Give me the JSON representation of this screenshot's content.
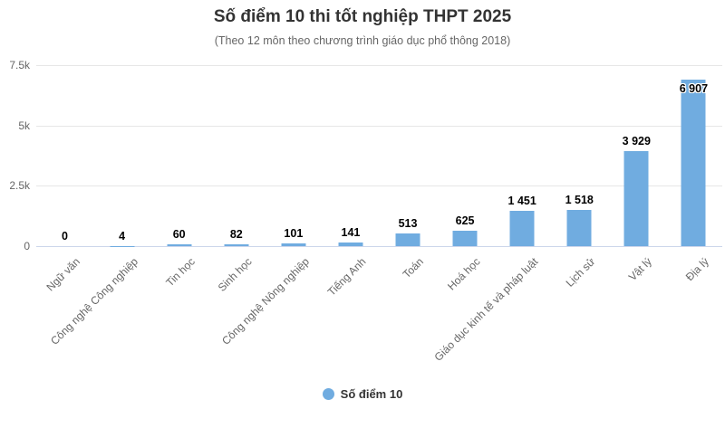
{
  "chart_data": {
    "type": "bar",
    "title": "Số điểm 10 thi tốt nghiệp THPT 2025",
    "subtitle": "(Theo 12 môn theo chương trình giáo dục phổ thông 2018)",
    "categories": [
      "Ngữ văn",
      "Công nghệ Công nghiệp",
      "Tin học",
      "Sinh học",
      "Công nghệ Nông nghiệp",
      "Tiếng Anh",
      "Toán",
      "Hoá học",
      "Giáo dục kinh tế và pháp luật",
      "Lịch sử",
      "Vật lý",
      "Địa lý"
    ],
    "values": [
      0,
      4,
      60,
      82,
      101,
      141,
      513,
      625,
      1451,
      1518,
      3929,
      6907
    ],
    "value_labels": [
      "0",
      "4",
      "60",
      "82",
      "101",
      "141",
      "513",
      "625",
      "1 451",
      "1 518",
      "3 929",
      "6 907"
    ],
    "series_name": "Số điểm 10",
    "xlabel": "",
    "ylabel": "",
    "ylim": [
      0,
      7500
    ],
    "ytick_values": [
      0,
      2500,
      5000,
      7500
    ],
    "ytick_labels": [
      "0",
      "2.5k",
      "5k",
      "7.5k"
    ],
    "grid": true,
    "legend_position": "bottom-center",
    "colors": {
      "bar": "#70ACE0",
      "axis_line": "#ccd6eb",
      "gridline": "#e6e6e6",
      "title": "#333333",
      "subtitle": "#666666",
      "axis_label": "#666666",
      "data_label": "#000000"
    }
  }
}
